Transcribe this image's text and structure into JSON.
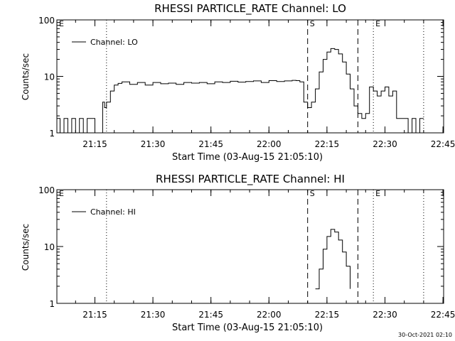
{
  "footer": {
    "timestamp": "30-Oct-2021 02:10"
  },
  "chart_data": [
    {
      "type": "line",
      "title": "RHESSI PARTICLE_RATE Channel: LO",
      "xlabel": "Start Time (03-Aug-15 21:05:10)",
      "ylabel": "Counts/sec",
      "yscale": "log",
      "ylim": [
        1,
        100
      ],
      "y_ticks": [
        1,
        10,
        100
      ],
      "y_tick_labels": [
        "1",
        "10",
        "100"
      ],
      "xlim": [
        "21:05:10",
        "22:45:10"
      ],
      "x_ticks": [
        "21:15",
        "21:30",
        "21:45",
        "22:00",
        "22:15",
        "22:30",
        "22:45"
      ],
      "legend": {
        "label": "Channel: LO",
        "position": "top-left"
      },
      "markers": [
        {
          "label": "E",
          "time": "21:05:10",
          "style": "dotted"
        },
        {
          "label": "",
          "time": "21:18",
          "style": "dotted"
        },
        {
          "label": "S",
          "time": "22:10",
          "style": "dashed"
        },
        {
          "label": "",
          "time": "22:23",
          "style": "dashed"
        },
        {
          "label": "E",
          "time": "22:27",
          "style": "dotted"
        },
        {
          "label": "",
          "time": "22:40",
          "style": "dotted"
        }
      ],
      "series": [
        {
          "name": "Channel: LO",
          "x": [
            "21:05:10",
            "21:06",
            "21:07",
            "21:07:30",
            "21:08",
            "21:09",
            "21:10",
            "21:11",
            "21:12",
            "21:13",
            "21:14",
            "21:15",
            "21:16",
            "21:17",
            "21:17:30",
            "21:18",
            "21:19",
            "21:20",
            "21:21",
            "21:22",
            "21:24",
            "21:26",
            "21:28",
            "21:30",
            "21:32",
            "21:34",
            "21:36",
            "21:38",
            "21:40",
            "21:42",
            "21:44",
            "21:46",
            "21:48",
            "21:50",
            "21:52",
            "21:54",
            "21:56",
            "21:58",
            "22:00",
            "22:02",
            "22:04",
            "22:06",
            "22:07",
            "22:08",
            "22:09",
            "22:10",
            "22:11",
            "22:12",
            "22:13",
            "22:14",
            "22:15",
            "22:16",
            "22:17",
            "22:18",
            "22:19",
            "22:20",
            "22:21",
            "22:22",
            "22:23",
            "22:24",
            "22:25",
            "22:26",
            "22:27",
            "22:28",
            "22:29",
            "22:30",
            "22:31",
            "22:32",
            "22:33",
            "22:34",
            "22:35",
            "22:36",
            "22:37",
            "22:38",
            "22:39",
            "22:40"
          ],
          "values": [
            1.8,
            1.0,
            1.8,
            1.8,
            1.0,
            1.8,
            1.0,
            1.8,
            1.0,
            1.8,
            1.8,
            1.0,
            1.0,
            3.5,
            2.8,
            3.5,
            5.5,
            7.0,
            7.5,
            8.0,
            7.2,
            7.8,
            7.0,
            7.8,
            7.4,
            7.6,
            7.2,
            7.8,
            7.6,
            7.8,
            7.4,
            8.0,
            7.8,
            8.2,
            7.9,
            8.1,
            8.3,
            7.8,
            8.4,
            8.1,
            8.3,
            8.5,
            8.4,
            8.0,
            3.5,
            2.8,
            3.5,
            6.0,
            12.0,
            20.0,
            27.0,
            31.0,
            30.0,
            25.0,
            18.0,
            11.0,
            6.0,
            3.0,
            2.2,
            1.8,
            2.2,
            6.5,
            5.5,
            4.5,
            5.5,
            6.5,
            4.5,
            5.5,
            1.8,
            1.8,
            1.8,
            1.0,
            1.8,
            1.0,
            1.8,
            1.8
          ]
        }
      ]
    },
    {
      "type": "line",
      "title": "RHESSI PARTICLE_RATE Channel: HI",
      "xlabel": "Start Time (03-Aug-15 21:05:10)",
      "ylabel": "Counts/sec",
      "yscale": "log",
      "ylim": [
        1,
        100
      ],
      "y_ticks": [
        1,
        10,
        100
      ],
      "y_tick_labels": [
        "1",
        "10",
        "100"
      ],
      "xlim": [
        "21:05:10",
        "22:45:10"
      ],
      "x_ticks": [
        "21:15",
        "21:30",
        "21:45",
        "22:00",
        "22:15",
        "22:30",
        "22:45"
      ],
      "legend": {
        "label": "Channel: HI",
        "position": "top-left"
      },
      "markers": [
        {
          "label": "E",
          "time": "21:05:10",
          "style": "dotted"
        },
        {
          "label": "",
          "time": "21:18",
          "style": "dotted"
        },
        {
          "label": "S",
          "time": "22:10",
          "style": "dashed"
        },
        {
          "label": "",
          "time": "22:23",
          "style": "dashed"
        },
        {
          "label": "E",
          "time": "22:27",
          "style": "dotted"
        },
        {
          "label": "",
          "time": "22:40",
          "style": "dotted"
        }
      ],
      "series": [
        {
          "name": "Channel: HI",
          "x": [
            "22:12",
            "22:13",
            "22:14",
            "22:15",
            "22:16",
            "22:17",
            "22:18",
            "22:19",
            "22:20",
            "22:21"
          ],
          "values": [
            1.8,
            4.0,
            9.0,
            15.0,
            20.0,
            18.0,
            13.0,
            8.0,
            4.5,
            1.8
          ]
        }
      ]
    }
  ]
}
